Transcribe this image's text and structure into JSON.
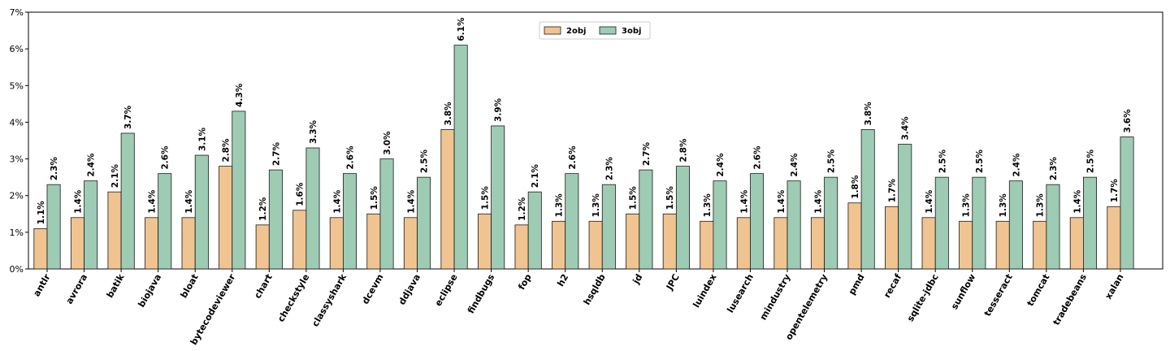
{
  "chart_data": {
    "type": "bar",
    "categories": [
      "antlr",
      "avrora",
      "batik",
      "biojava",
      "bloat",
      "bytecodeviewer",
      "chart",
      "checkstyle",
      "classyshark",
      "dcevm",
      "ddjava",
      "eclipse",
      "findbugs",
      "fop",
      "h2",
      "hsqldb",
      "jd",
      "JPC",
      "luindex",
      "lusearch",
      "mindustry",
      "opentelemetry",
      "pmd",
      "recaf",
      "sqlite-jdbc",
      "sunflow",
      "tesseract",
      "tomcat",
      "tradebeans",
      "xalan"
    ],
    "series": [
      {
        "name": "2obj",
        "color": "#f0c490",
        "values": [
          1.1,
          1.4,
          2.1,
          1.4,
          1.4,
          2.8,
          1.2,
          1.6,
          1.4,
          1.5,
          1.4,
          3.8,
          1.5,
          1.2,
          1.3,
          1.3,
          1.5,
          1.5,
          1.3,
          1.4,
          1.4,
          1.4,
          1.8,
          1.7,
          1.4,
          1.3,
          1.3,
          1.3,
          1.4,
          1.7
        ],
        "labels": [
          "1.1%",
          "1.4%",
          "2.1%",
          "1.4%",
          "1.4%",
          "2.8%",
          "1.2%",
          "1.6%",
          "1.4%",
          "1.5%",
          "1.4%",
          "3.8%",
          "1.5%",
          "1.2%",
          "1.3%",
          "1.3%",
          "1.5%",
          "1.5%",
          "1.3%",
          "1.4%",
          "1.4%",
          "1.4%",
          "1.8%",
          "1.7%",
          "1.4%",
          "1.3%",
          "1.3%",
          "1.3%",
          "1.4%",
          "1.7%"
        ]
      },
      {
        "name": "3obj",
        "color": "#9ecbb4",
        "values": [
          2.3,
          2.4,
          3.7,
          2.6,
          3.1,
          4.3,
          2.7,
          3.3,
          2.6,
          3.0,
          2.5,
          6.1,
          3.9,
          2.1,
          2.6,
          2.3,
          2.7,
          2.8,
          2.4,
          2.6,
          2.4,
          2.5,
          3.8,
          3.4,
          2.5,
          2.5,
          2.4,
          2.3,
          2.5,
          3.6
        ],
        "labels": [
          "2.3%",
          "2.4%",
          "3.7%",
          "2.6%",
          "3.1%",
          "4.3%",
          "2.7%",
          "3.3%",
          "2.6%",
          "3.0%",
          "2.5%",
          "6.1%",
          "3.9%",
          "2.1%",
          "2.6%",
          "2.3%",
          "2.7%",
          "2.8%",
          "2.4%",
          "2.6%",
          "2.4%",
          "2.5%",
          "3.8%",
          "3.4%",
          "2.5%",
          "2.5%",
          "2.4%",
          "2.3%",
          "2.5%",
          "3.6%"
        ]
      }
    ],
    "ylim": [
      0,
      7
    ],
    "yticks": [
      "0%",
      "1%",
      "2%",
      "3%",
      "4%",
      "5%",
      "6%",
      "7%"
    ],
    "title": "",
    "xlabel": "",
    "ylabel": "",
    "grid": false,
    "legend": "top-center",
    "edge_color": "#1a1a1a"
  }
}
